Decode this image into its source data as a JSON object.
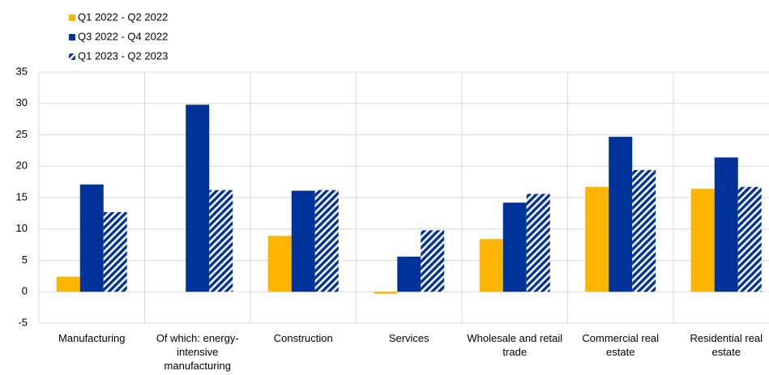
{
  "chart_data": {
    "type": "bar",
    "categories": [
      "Manufacturing",
      "Of which: energy-intensive manufacturing",
      "Construction",
      "Services",
      "Wholesale and retail trade",
      "Commercial real estate",
      "Residential real estate"
    ],
    "series": [
      {
        "name": "Q1 2022 - Q2 2022",
        "color": "#ffb400",
        "values": [
          2.4,
          null,
          8.9,
          -0.3,
          8.4,
          16.7,
          16.4
        ]
      },
      {
        "name": "Q3 2022 - Q4 2022",
        "color": "#003299",
        "values": [
          17.1,
          29.8,
          16.1,
          5.6,
          14.2,
          24.7,
          21.4
        ]
      },
      {
        "name": "Q1 2023 - Q2 2023",
        "color": "#003299",
        "pattern": "diagonal-stripes",
        "values": [
          12.7,
          16.2,
          16.2,
          9.8,
          15.6,
          19.4,
          16.7
        ]
      }
    ],
    "ylim": [
      -5,
      35
    ],
    "yticks": [
      -5,
      0,
      5,
      10,
      15,
      20,
      25,
      30,
      35
    ],
    "grid": true
  }
}
